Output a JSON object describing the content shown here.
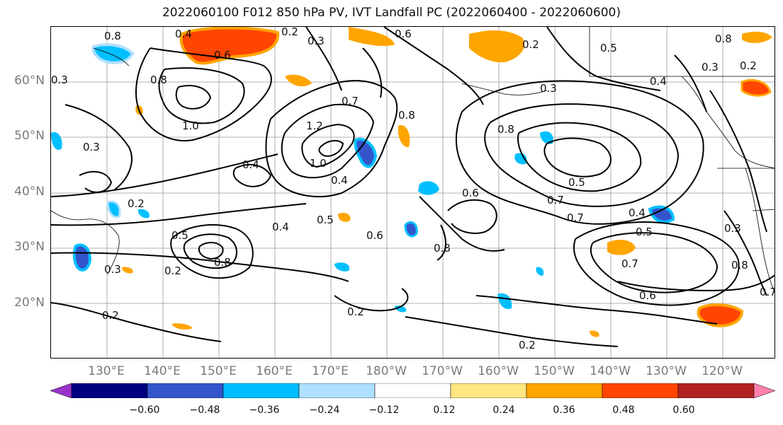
{
  "title": "2022060100 F012 850 hPa PV, IVT Landfall PC (2022060400 - 2022060600)",
  "lat_labels": [
    "60°N",
    "50°N",
    "40°N",
    "30°N",
    "20°N"
  ],
  "lon_labels": [
    "130°E",
    "140°E",
    "150°E",
    "160°E",
    "170°E",
    "180°W",
    "170°W",
    "160°W",
    "150°W",
    "140°W",
    "130°W",
    "120°W"
  ],
  "colorbar": {
    "ticks": [
      "−0.60",
      "−0.48",
      "−0.36",
      "−0.24",
      "−0.12",
      "0.12",
      "0.24",
      "0.36",
      "0.48",
      "0.60"
    ],
    "colors": [
      "#9933cc",
      "#000080",
      "#3355cc",
      "#00bfff",
      "#aee0ff",
      "#ffffff",
      "#ffe680",
      "#ffa500",
      "#ff4500",
      "#b22222",
      "#ff80aa"
    ]
  },
  "contour_labels": [
    "0.8",
    "0.4",
    "0.3",
    "0.2",
    "0.6",
    "0.6",
    "0.2",
    "0.8",
    "0.5",
    "0.3",
    "0.2",
    "0.4",
    "0.8",
    "1.0",
    "0.3",
    "0.7",
    "0.8",
    "1.2",
    "1.0",
    "0.4",
    "0.4",
    "0.4",
    "0.8",
    "0.3",
    "0.2",
    "0.6",
    "0.5",
    "0.6",
    "0.8",
    "0.7",
    "0.5",
    "0.7",
    "0.4",
    "0.5",
    "0.7",
    "0.5",
    "0.8",
    "0.3",
    "0.2",
    "0.2",
    "0.6",
    "0.2",
    "0.3",
    "0.8",
    "0.2",
    "0.7",
    "0.3"
  ]
}
